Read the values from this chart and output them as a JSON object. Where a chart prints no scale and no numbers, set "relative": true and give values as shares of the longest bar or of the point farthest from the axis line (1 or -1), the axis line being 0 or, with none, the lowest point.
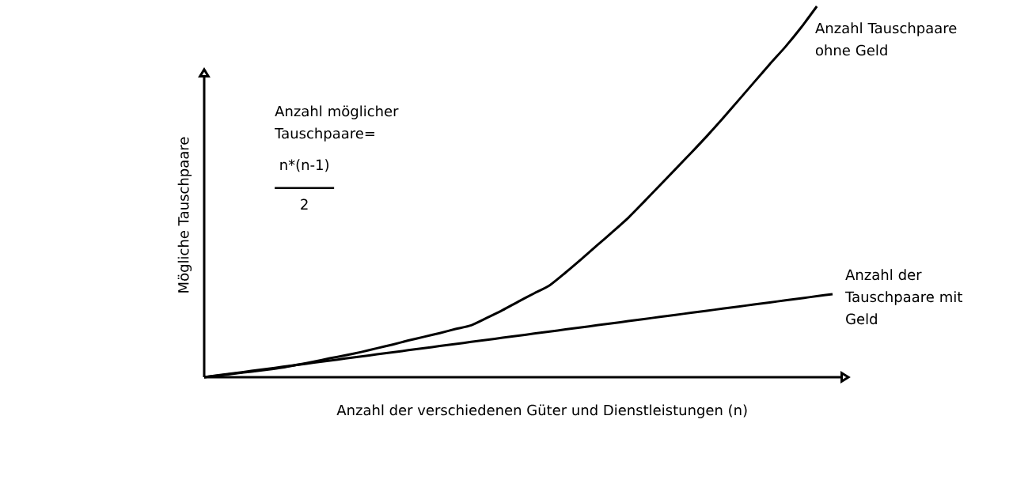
{
  "chart_data": {
    "type": "line",
    "relative": true,
    "categories": [
      null,
      null,
      null,
      null,
      null,
      null,
      null,
      null,
      null,
      null,
      null,
      null,
      null,
      null,
      null,
      null,
      null,
      null,
      null,
      null,
      null,
      null,
      null,
      null,
      null,
      null,
      null,
      null,
      null,
      null,
      null,
      null,
      null,
      null,
      null,
      null,
      null,
      null,
      null,
      null,
      null
    ],
    "xlabel": "Anzahl der verschiedenen Güter und Dienstleistungen (n)",
    "ylabel": "Mögliche Tauschpaare",
    "annotations": [
      "Anzahl möglicher Tauschpaare=",
      "n*(n-1)",
      "2"
    ],
    "series": [
      {
        "name": "Anzahl Tauschpaare ohne Geld",
        "color": "#000000",
        "values": [
          0,
          0.005,
          0.01,
          0.015,
          0.02,
          0.026,
          0.034,
          0.042,
          0.051,
          0.059,
          0.068,
          0.078,
          0.088,
          0.099,
          0.109,
          0.119,
          0.13,
          0.14,
          0.16,
          0.181,
          0.204,
          0.226,
          0.248,
          0.282,
          0.318,
          0.355,
          0.392,
          0.43,
          0.473,
          0.517,
          0.561,
          0.605,
          0.65,
          0.697,
          0.746,
          0.795,
          0.844,
          0.891,
          0.943,
          1.0,
          null
        ]
      },
      {
        "name": "Anzahl der Tauschpaare mit Geld",
        "color": "#000000",
        "values": [
          0,
          0.0056,
          0.0112,
          0.0168,
          0.0224,
          0.028,
          0.0336,
          0.0392,
          0.0448,
          0.0504,
          0.056,
          0.0616,
          0.0672,
          0.0728,
          0.0784,
          0.084,
          0.0896,
          0.0952,
          0.1008,
          0.1064,
          0.112,
          0.1176,
          0.1232,
          0.1288,
          0.1344,
          0.14,
          0.1456,
          0.1512,
          0.1568,
          0.1624,
          0.168,
          0.1736,
          0.1792,
          0.1848,
          0.1904,
          0.196,
          0.2016,
          0.2072,
          0.2128,
          0.2184,
          0.224
        ]
      }
    ]
  }
}
